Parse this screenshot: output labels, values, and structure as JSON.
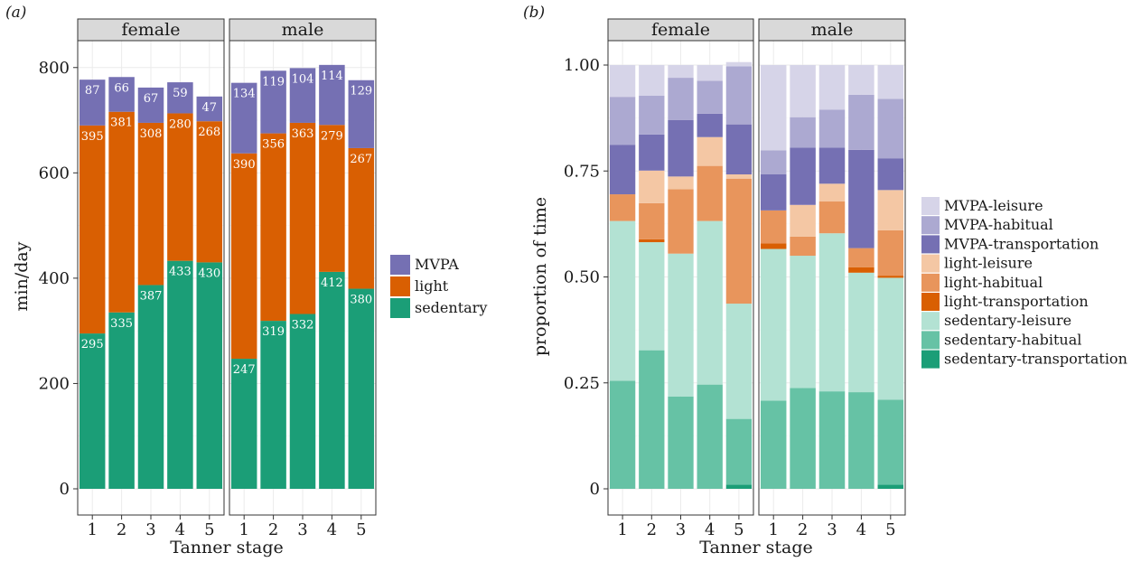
{
  "chart_data": [
    {
      "panel": "(a)",
      "type": "bar",
      "stacked": true,
      "facets": [
        "female",
        "male"
      ],
      "categories": [
        "1",
        "2",
        "3",
        "4",
        "5"
      ],
      "xlabel": "Tanner stage",
      "ylabel": "min/day",
      "ylim": [
        0,
        820
      ],
      "yticks": [
        0,
        200,
        400,
        600,
        800
      ],
      "grid": true,
      "legend_position": "right",
      "series": [
        {
          "name": "sedentary",
          "color": "#1b9e77",
          "values": {
            "female": [
              295,
              335,
              387,
              433,
              430
            ],
            "male": [
              247,
              319,
              332,
              412,
              380
            ]
          }
        },
        {
          "name": "light",
          "color": "#d95f02",
          "values": {
            "female": [
              395,
              381,
              308,
              280,
              268
            ],
            "male": [
              390,
              356,
              363,
              279,
              267
            ]
          }
        },
        {
          "name": "MVPA",
          "color": "#7570b3",
          "values": {
            "female": [
              87,
              66,
              67,
              59,
              47
            ],
            "male": [
              134,
              119,
              104,
              114,
              129
            ]
          }
        }
      ],
      "legend_order": [
        "MVPA",
        "light",
        "sedentary"
      ]
    },
    {
      "panel": "(b)",
      "type": "bar",
      "stacked": true,
      "facets": [
        "female",
        "male"
      ],
      "categories": [
        "1",
        "2",
        "3",
        "4",
        "5"
      ],
      "xlabel": "Tanner stage",
      "ylabel": "proportion of time",
      "ylim": [
        0,
        1.05
      ],
      "yticks": [
        0,
        0.25,
        0.5,
        0.75,
        1.0
      ],
      "ytick_labels": [
        "0",
        "0.25",
        "0.50",
        "0.75",
        "1.00"
      ],
      "grid": true,
      "legend_position": "right",
      "series": [
        {
          "name": "sedentary-transportation",
          "color": "#1b9e77",
          "values": {
            "female": [
              0,
              0,
              0,
              0,
              0.01
            ],
            "male": [
              0,
              0,
              0,
              0,
              0.01
            ]
          }
        },
        {
          "name": "sedentary-habitual",
          "color": "#66c2a5",
          "values": {
            "female": [
              0.255,
              0.327,
              0.218,
              0.246,
              0.155
            ],
            "male": [
              0.208,
              0.238,
              0.23,
              0.228,
              0.2
            ]
          }
        },
        {
          "name": "sedentary-leisure",
          "color": "#b3e2d3",
          "values": {
            "female": [
              0.377,
              0.255,
              0.337,
              0.386,
              0.272
            ],
            "male": [
              0.358,
              0.312,
              0.373,
              0.282,
              0.288
            ]
          }
        },
        {
          "name": "light-transportation",
          "color": "#d95f02",
          "values": {
            "female": [
              0,
              0.007,
              0,
              0,
              0
            ],
            "male": [
              0.013,
              0,
              0,
              0.013,
              0.005
            ]
          }
        },
        {
          "name": "light-habitual",
          "color": "#e8955c",
          "values": {
            "female": [
              0.063,
              0.085,
              0.152,
              0.13,
              0.295
            ],
            "male": [
              0.078,
              0.045,
              0.075,
              0.045,
              0.107
            ]
          }
        },
        {
          "name": "light-leisure",
          "color": "#f4c7a4",
          "values": {
            "female": [
              0,
              0.077,
              0.03,
              0.068,
              0.01
            ],
            "male": [
              0,
              0.075,
              0.042,
              0,
              0.095
            ]
          }
        },
        {
          "name": "MVPA-transportation",
          "color": "#7570b3",
          "values": {
            "female": [
              0.117,
              0.085,
              0.133,
              0.055,
              0.118
            ],
            "male": [
              0.085,
              0.135,
              0.085,
              0.232,
              0.075
            ]
          }
        },
        {
          "name": "MVPA-habitual",
          "color": "#aca9d1",
          "values": {
            "female": [
              0.113,
              0.092,
              0.1,
              0.078,
              0.137
            ],
            "male": [
              0.057,
              0.072,
              0.09,
              0.13,
              0.14
            ]
          }
        },
        {
          "name": "MVPA-leisure",
          "color": "#d6d4e8",
          "values": {
            "female": [
              0.075,
              0.072,
              0.03,
              0.037,
              0.01
            ],
            "male": [
              0.201,
              0.123,
              0.105,
              0.07,
              0.08
            ]
          }
        }
      ],
      "legend_order": [
        "MVPA-leisure",
        "MVPA-habitual",
        "MVPA-transportation",
        "light-leisure",
        "light-habitual",
        "light-transportation",
        "sedentary-leisure",
        "sedentary-habitual",
        "sedentary-transportation"
      ]
    }
  ]
}
